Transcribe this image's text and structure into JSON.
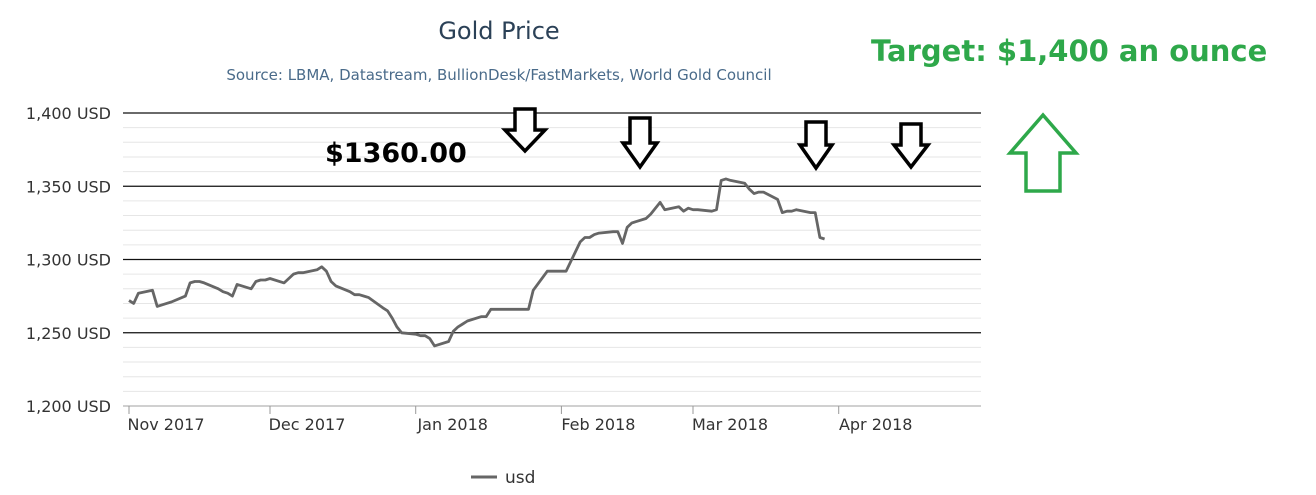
{
  "chart_data": {
    "type": "line",
    "title": "Gold Price",
    "subtitle": "Source: LBMA, Datastream, BullionDesk/FastMarkets, World Gold Council",
    "xlabel": "",
    "ylabel": "",
    "ylim": [
      1200,
      1400
    ],
    "y_ticks": [
      1200,
      1250,
      1300,
      1350,
      1400
    ],
    "y_tick_labels": [
      "1,200 USD",
      "1,250 USD",
      "1,300 USD",
      "1,350 USD",
      "1,400 USD"
    ],
    "x_ticks": [
      {
        "date": "2017-11-01",
        "label": "Nov 2017"
      },
      {
        "date": "2017-12-01",
        "label": "Dec 2017"
      },
      {
        "date": "2018-01-01",
        "label": "Jan 2018"
      },
      {
        "date": "2018-02-01",
        "label": "Feb 2018"
      },
      {
        "date": "2018-03-01",
        "label": "Mar 2018"
      },
      {
        "date": "2018-04-01",
        "label": "Apr 2018"
      }
    ],
    "xlim": [
      "2017-11-01",
      "2018-04-30"
    ],
    "grid": true,
    "legend": {
      "position": "bottom-center"
    },
    "series": [
      {
        "name": "usd",
        "color": "#666666",
        "points": [
          [
            "2017-11-01",
            1272
          ],
          [
            "2017-11-02",
            1270
          ],
          [
            "2017-11-03",
            1277
          ],
          [
            "2017-11-06",
            1279
          ],
          [
            "2017-11-07",
            1268
          ],
          [
            "2017-11-08",
            1269
          ],
          [
            "2017-11-09",
            1270
          ],
          [
            "2017-11-10",
            1271
          ],
          [
            "2017-11-13",
            1275
          ],
          [
            "2017-11-14",
            1284
          ],
          [
            "2017-11-15",
            1285
          ],
          [
            "2017-11-16",
            1285
          ],
          [
            "2017-11-17",
            1284
          ],
          [
            "2017-11-20",
            1280
          ],
          [
            "2017-11-21",
            1278
          ],
          [
            "2017-11-22",
            1277
          ],
          [
            "2017-11-23",
            1275
          ],
          [
            "2017-11-24",
            1283
          ],
          [
            "2017-11-27",
            1280
          ],
          [
            "2017-11-28",
            1285
          ],
          [
            "2017-11-29",
            1286
          ],
          [
            "2017-11-30",
            1286
          ],
          [
            "2017-12-01",
            1287
          ],
          [
            "2017-12-04",
            1284
          ],
          [
            "2017-12-05",
            1287
          ],
          [
            "2017-12-06",
            1290
          ],
          [
            "2017-12-07",
            1291
          ],
          [
            "2017-12-08",
            1291
          ],
          [
            "2017-12-11",
            1293
          ],
          [
            "2017-12-12",
            1295
          ],
          [
            "2017-12-13",
            1292
          ],
          [
            "2017-12-14",
            1285
          ],
          [
            "2017-12-15",
            1282
          ],
          [
            "2017-12-18",
            1278
          ],
          [
            "2017-12-19",
            1276
          ],
          [
            "2017-12-20",
            1276
          ],
          [
            "2017-12-21",
            1275
          ],
          [
            "2017-12-22",
            1274
          ],
          [
            "2017-12-25",
            1267
          ],
          [
            "2017-12-26",
            1265
          ],
          [
            "2017-12-27",
            1260
          ],
          [
            "2017-12-28",
            1254
          ],
          [
            "2017-12-29",
            1250
          ],
          [
            "2018-01-01",
            1249
          ],
          [
            "2018-01-02",
            1248
          ],
          [
            "2018-01-03",
            1248
          ],
          [
            "2018-01-04",
            1246
          ],
          [
            "2018-01-05",
            1241
          ],
          [
            "2018-01-08",
            1244
          ],
          [
            "2018-01-09",
            1251
          ],
          [
            "2018-01-10",
            1254
          ],
          [
            "2018-01-11",
            1256
          ],
          [
            "2018-01-12",
            1258
          ],
          [
            "2018-01-15",
            1261
          ],
          [
            "2018-01-16",
            1261
          ],
          [
            "2018-01-17",
            1266
          ],
          [
            "2018-01-18",
            1266
          ],
          [
            "2018-01-19",
            1266
          ],
          [
            "2018-01-22",
            1266
          ],
          [
            "2018-01-23",
            1266
          ],
          [
            "2018-01-24",
            1266
          ],
          [
            "2018-01-25",
            1266
          ],
          [
            "2018-01-26",
            1279
          ],
          [
            "2018-01-29",
            1292
          ],
          [
            "2018-01-30",
            1292
          ],
          [
            "2018-01-31",
            1292
          ],
          [
            "2018-02-01",
            1292
          ],
          [
            "2018-02-02",
            1292
          ],
          [
            "2018-02-05",
            1312
          ],
          [
            "2018-02-06",
            1315
          ],
          [
            "2018-02-07",
            1315
          ],
          [
            "2018-02-08",
            1317
          ],
          [
            "2018-02-09",
            1318
          ],
          [
            "2018-02-12",
            1319
          ],
          [
            "2018-02-13",
            1319
          ],
          [
            "2018-02-14",
            1311
          ],
          [
            "2018-02-15",
            1322
          ],
          [
            "2018-02-16",
            1325
          ],
          [
            "2018-02-19",
            1328
          ],
          [
            "2018-02-20",
            1331
          ],
          [
            "2018-02-21",
            1335
          ],
          [
            "2018-02-22",
            1339
          ],
          [
            "2018-02-23",
            1334
          ],
          [
            "2018-02-26",
            1336
          ],
          [
            "2018-02-27",
            1333
          ],
          [
            "2018-02-28",
            1335
          ],
          [
            "2018-03-01",
            1334
          ],
          [
            "2018-03-02",
            1334
          ],
          [
            "2018-03-05",
            1333
          ],
          [
            "2018-03-06",
            1334
          ],
          [
            "2018-03-07",
            1354
          ],
          [
            "2018-03-08",
            1355
          ],
          [
            "2018-03-09",
            1354
          ],
          [
            "2018-03-12",
            1352
          ],
          [
            "2018-03-13",
            1348
          ],
          [
            "2018-03-14",
            1345
          ],
          [
            "2018-03-15",
            1346
          ],
          [
            "2018-03-16",
            1346
          ],
          [
            "2018-03-19",
            1341
          ],
          [
            "2018-03-20",
            1332
          ],
          [
            "2018-03-21",
            1333
          ],
          [
            "2018-03-22",
            1333
          ],
          [
            "2018-03-23",
            1334
          ],
          [
            "2018-03-26",
            1332
          ],
          [
            "2018-03-27",
            1332
          ],
          [
            "2018-03-28",
            1315
          ],
          [
            "2018-03-29",
            1314
          ]
        ]
      }
    ],
    "annotations": [
      {
        "text": "$1360.00"
      },
      {
        "text": "Target: $1,400 an ounce",
        "color": "#2ea84a"
      }
    ]
  },
  "legend_label": "usd",
  "colors": {
    "line": "#666666",
    "title": "#2b4157",
    "subtitle": "#4a6b8a",
    "target": "#2ea84a"
  }
}
